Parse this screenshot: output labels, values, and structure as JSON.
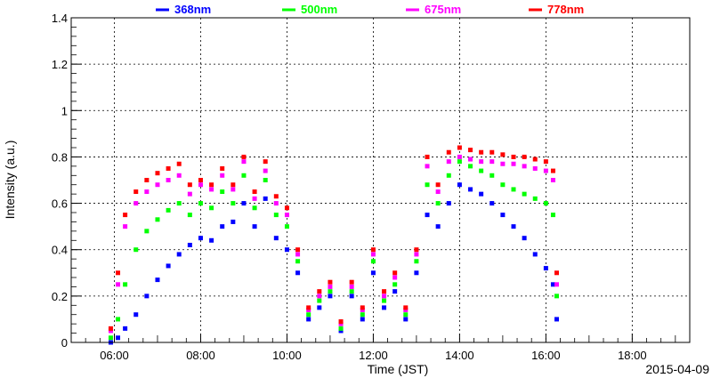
{
  "chart_data": {
    "type": "scatter",
    "title": "",
    "xlabel": "Time (JST)",
    "ylabel": "Intensity (a.u.)",
    "date_label": "2015-04-09",
    "xlim": [
      "05:00",
      "19:20"
    ],
    "ylim": [
      0,
      1.4
    ],
    "x_ticks": [
      "06:00",
      "08:00",
      "10:00",
      "12:00",
      "14:00",
      "16:00",
      "18:00"
    ],
    "y_ticks": [
      "0",
      "0.2",
      "0.4",
      "0.6",
      "0.8",
      "1",
      "1.2",
      "1.4"
    ],
    "grid": true,
    "legend_position": "top",
    "series": [
      {
        "name": "368nm",
        "color": "#0000ff",
        "x": [
          "05:55",
          "06:05",
          "06:15",
          "06:30",
          "06:45",
          "07:00",
          "07:15",
          "07:30",
          "07:45",
          "08:00",
          "08:15",
          "08:30",
          "08:45",
          "09:00",
          "09:15",
          "09:30",
          "09:45",
          "10:00",
          "10:15",
          "10:30",
          "10:45",
          "11:00",
          "11:15",
          "11:30",
          "11:45",
          "12:00",
          "12:15",
          "12:30",
          "12:45",
          "13:00",
          "13:15",
          "13:30",
          "13:45",
          "14:00",
          "14:15",
          "14:30",
          "14:45",
          "15:00",
          "15:15",
          "15:30",
          "15:45",
          "16:00",
          "16:10",
          "16:15"
        ],
        "y": [
          0.0,
          0.02,
          0.06,
          0.12,
          0.2,
          0.27,
          0.33,
          0.38,
          0.42,
          0.45,
          0.44,
          0.5,
          0.52,
          0.6,
          0.5,
          0.62,
          0.45,
          0.4,
          0.3,
          0.1,
          0.15,
          0.2,
          0.05,
          0.2,
          0.1,
          0.3,
          0.15,
          0.22,
          0.1,
          0.3,
          0.55,
          0.5,
          0.6,
          0.68,
          0.66,
          0.64,
          0.6,
          0.55,
          0.5,
          0.45,
          0.38,
          0.32,
          0.25,
          0.1
        ]
      },
      {
        "name": "500nm",
        "color": "#00ff00",
        "x": [
          "05:55",
          "06:05",
          "06:15",
          "06:30",
          "06:45",
          "07:00",
          "07:15",
          "07:30",
          "07:45",
          "08:00",
          "08:15",
          "08:30",
          "08:45",
          "09:00",
          "09:15",
          "09:30",
          "09:45",
          "10:00",
          "10:15",
          "10:30",
          "10:45",
          "11:00",
          "11:15",
          "11:30",
          "11:45",
          "12:00",
          "12:15",
          "12:30",
          "12:45",
          "13:00",
          "13:15",
          "13:30",
          "13:45",
          "14:00",
          "14:15",
          "14:30",
          "14:45",
          "15:00",
          "15:15",
          "15:30",
          "15:45",
          "16:00",
          "16:10",
          "16:15"
        ],
        "y": [
          0.02,
          0.1,
          0.25,
          0.4,
          0.48,
          0.53,
          0.57,
          0.6,
          0.55,
          0.6,
          0.58,
          0.65,
          0.6,
          0.72,
          0.58,
          0.7,
          0.55,
          0.5,
          0.35,
          0.12,
          0.18,
          0.22,
          0.06,
          0.22,
          0.12,
          0.35,
          0.18,
          0.25,
          0.12,
          0.35,
          0.68,
          0.6,
          0.72,
          0.78,
          0.76,
          0.74,
          0.72,
          0.68,
          0.66,
          0.64,
          0.62,
          0.6,
          0.55,
          0.2
        ]
      },
      {
        "name": "675nm",
        "color": "#ff00ff",
        "x": [
          "05:55",
          "06:05",
          "06:15",
          "06:30",
          "06:45",
          "07:00",
          "07:15",
          "07:30",
          "07:45",
          "08:00",
          "08:15",
          "08:30",
          "08:45",
          "09:00",
          "09:15",
          "09:30",
          "09:45",
          "10:00",
          "10:15",
          "10:30",
          "10:45",
          "11:00",
          "11:15",
          "11:30",
          "11:45",
          "12:00",
          "12:15",
          "12:30",
          "12:45",
          "13:00",
          "13:15",
          "13:30",
          "13:45",
          "14:00",
          "14:15",
          "14:30",
          "14:45",
          "15:00",
          "15:15",
          "15:30",
          "15:45",
          "16:00",
          "16:10",
          "16:15"
        ],
        "y": [
          0.05,
          0.25,
          0.5,
          0.6,
          0.65,
          0.68,
          0.7,
          0.72,
          0.64,
          0.68,
          0.66,
          0.72,
          0.66,
          0.78,
          0.62,
          0.74,
          0.6,
          0.55,
          0.38,
          0.14,
          0.2,
          0.24,
          0.08,
          0.24,
          0.14,
          0.38,
          0.2,
          0.28,
          0.14,
          0.38,
          0.76,
          0.65,
          0.78,
          0.8,
          0.79,
          0.78,
          0.78,
          0.77,
          0.77,
          0.76,
          0.75,
          0.74,
          0.7,
          0.25
        ]
      },
      {
        "name": "778nm",
        "color": "#ff0000",
        "x": [
          "05:55",
          "06:05",
          "06:15",
          "06:30",
          "06:45",
          "07:00",
          "07:15",
          "07:30",
          "07:45",
          "08:00",
          "08:15",
          "08:30",
          "08:45",
          "09:00",
          "09:15",
          "09:30",
          "09:45",
          "10:00",
          "10:15",
          "10:30",
          "10:45",
          "11:00",
          "11:15",
          "11:30",
          "11:45",
          "12:00",
          "12:15",
          "12:30",
          "12:45",
          "13:00",
          "13:15",
          "13:30",
          "13:45",
          "14:00",
          "14:15",
          "14:30",
          "14:45",
          "15:00",
          "15:15",
          "15:30",
          "15:45",
          "16:00",
          "16:10",
          "16:15"
        ],
        "y": [
          0.06,
          0.3,
          0.55,
          0.65,
          0.7,
          0.73,
          0.75,
          0.77,
          0.68,
          0.7,
          0.68,
          0.75,
          0.68,
          0.8,
          0.65,
          0.78,
          0.63,
          0.58,
          0.4,
          0.15,
          0.22,
          0.26,
          0.09,
          0.26,
          0.15,
          0.4,
          0.22,
          0.3,
          0.15,
          0.4,
          0.8,
          0.68,
          0.82,
          0.84,
          0.83,
          0.82,
          0.82,
          0.81,
          0.8,
          0.8,
          0.79,
          0.78,
          0.74,
          0.3
        ]
      }
    ]
  }
}
